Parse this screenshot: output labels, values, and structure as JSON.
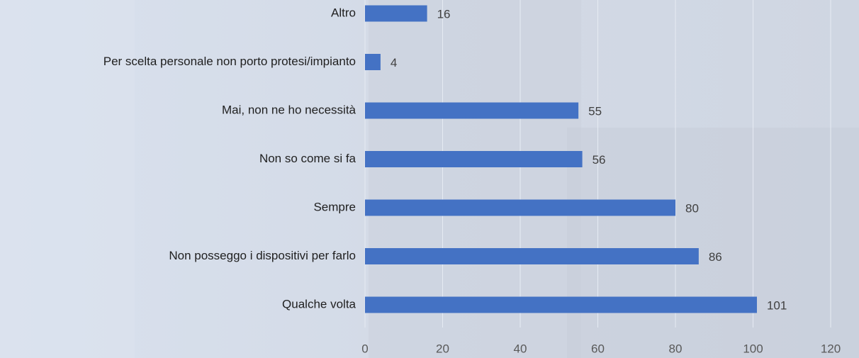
{
  "chart_data": {
    "type": "bar",
    "orientation": "horizontal",
    "categories": [
      "Altro",
      "Per scelta personale non porto protesi/impianto",
      "Mai, non ne ho necessità",
      "Non so come si fa",
      "Sempre",
      "Non posseggo i dispositivi per farlo",
      "Qualche volta"
    ],
    "values": [
      16,
      4,
      55,
      56,
      80,
      86,
      101
    ],
    "color": "#4472c4",
    "xlim": [
      0,
      120
    ],
    "xticks": [
      0,
      20,
      40,
      60,
      80,
      100,
      120
    ],
    "grid": true
  }
}
